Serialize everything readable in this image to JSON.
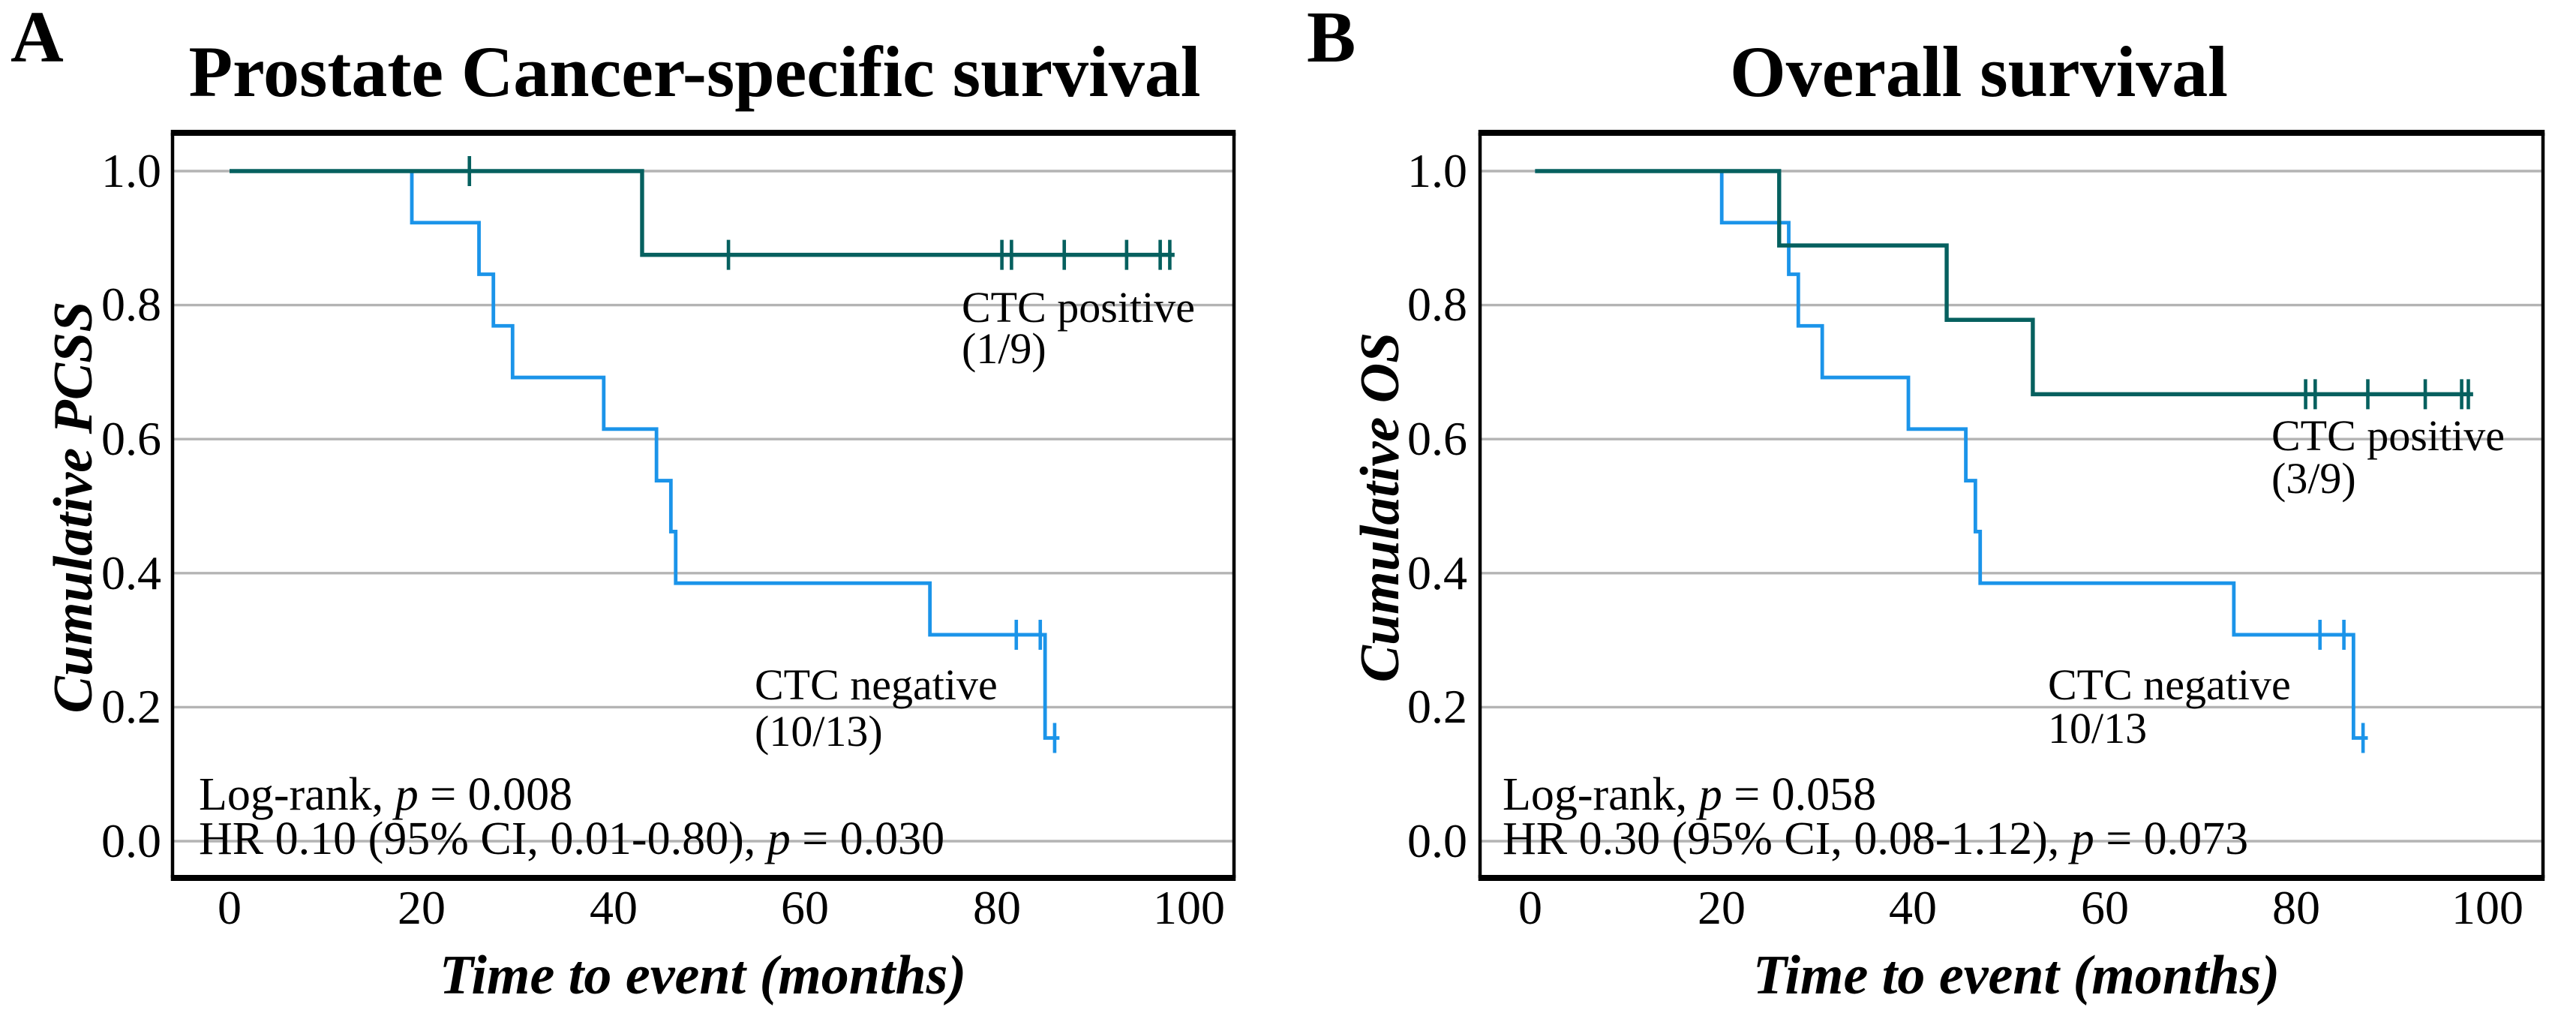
{
  "colors": {
    "ctc_positive": "#06605f",
    "ctc_negative": "#1b94e9",
    "gridline": "#b4b4b4",
    "frame": "#000000",
    "text": "#000000"
  },
  "chart_data": [
    {
      "type": "line",
      "subtype": "kaplan_meier_step",
      "panel_label": "A",
      "title": "Prostate Cancer-specific survival",
      "xlabel": "Time to event (months)",
      "ylabel": "Cumulative PCSS",
      "xlim": [
        0,
        100
      ],
      "ylim": [
        0.0,
        1.0
      ],
      "x_tick_labels": [
        "0",
        "20",
        "40",
        "60",
        "80",
        "100"
      ],
      "y_tick_labels": [
        "1.0",
        "0.8",
        "0.6",
        "0.4",
        "0.2",
        "0.0"
      ],
      "grid": "horizontal-gray",
      "legend_position": "inline-labels",
      "stats": {
        "logrank_prefix": "Log-rank, ",
        "p_symbol": "p",
        "logrank_suffix": " = 0.008",
        "hr_prefix": "HR 0.10 (95% CI, 0.01-0.80), ",
        "hr_suffix": " = 0.030"
      },
      "series": [
        {
          "name": "CTC negative",
          "label_line1": "CTC negative",
          "label_line2": "(10/13)",
          "events": "10/13",
          "color_key": "ctc_negative",
          "steps": [
            [
              0,
              1.0
            ],
            [
              19,
              0.923
            ],
            [
              26,
              0.846
            ],
            [
              27.5,
              0.769
            ],
            [
              29.5,
              0.692
            ],
            [
              39,
              0.615
            ],
            [
              44.5,
              0.538
            ],
            [
              46,
              0.462
            ],
            [
              46.5,
              0.385
            ],
            [
              73,
              0.308
            ],
            [
              85,
              0.154
            ]
          ],
          "end": 86.5,
          "censor_marks": [
            [
              82,
              0.308
            ],
            [
              84.5,
              0.308
            ],
            [
              86,
              0.154
            ]
          ]
        },
        {
          "name": "CTC positive",
          "label_line1": "CTC positive",
          "label_line2": "(1/9)",
          "events": "1/9",
          "color_key": "ctc_positive",
          "steps": [
            [
              0,
              1.0
            ],
            [
              43,
              0.875
            ]
          ],
          "end": 98.5,
          "censor_marks": [
            [
              25,
              1.0
            ],
            [
              52,
              0.875
            ],
            [
              80.5,
              0.875
            ],
            [
              81.5,
              0.875
            ],
            [
              87,
              0.875
            ],
            [
              93.5,
              0.875
            ],
            [
              97,
              0.875
            ],
            [
              98,
              0.875
            ]
          ]
        }
      ]
    },
    {
      "type": "line",
      "subtype": "kaplan_meier_step",
      "panel_label": "B",
      "title": "Overall survival",
      "xlabel": "Time to event (months)",
      "ylabel": "Cumulative OS",
      "xlim": [
        0,
        100
      ],
      "ylim": [
        0.0,
        1.0
      ],
      "x_tick_labels": [
        "0",
        "20",
        "40",
        "60",
        "80",
        "100"
      ],
      "y_tick_labels": [
        "1.0",
        "0.8",
        "0.6",
        "0.4",
        "0.2",
        "0.0"
      ],
      "grid": "horizontal-gray",
      "legend_position": "inline-labels",
      "stats": {
        "logrank_prefix": "Log-rank, ",
        "p_symbol": "p",
        "logrank_suffix": " = 0.058",
        "hr_prefix": "HR 0.30 (95% CI, 0.08-1.12), ",
        "hr_suffix": " = 0.073"
      },
      "series": [
        {
          "name": "CTC negative",
          "label_line1": "CTC negative",
          "label_line2": "10/13",
          "events": "10/13",
          "color_key": "ctc_negative",
          "steps": [
            [
              0.5,
              1.0
            ],
            [
              20,
              0.923
            ],
            [
              27,
              0.846
            ],
            [
              28,
              0.769
            ],
            [
              30.5,
              0.692
            ],
            [
              39.5,
              0.615
            ],
            [
              45.5,
              0.538
            ],
            [
              46.5,
              0.462
            ],
            [
              47,
              0.385
            ],
            [
              73.5,
              0.308
            ],
            [
              86,
              0.154
            ]
          ],
          "end": 87.5,
          "censor_marks": [
            [
              82.5,
              0.308
            ],
            [
              85,
              0.308
            ],
            [
              87,
              0.154
            ]
          ]
        },
        {
          "name": "CTC positive",
          "label_line1": "CTC positive",
          "label_line2": "(3/9)",
          "events": "3/9",
          "color_key": "ctc_positive",
          "steps": [
            [
              0.5,
              1.0
            ],
            [
              26,
              0.889
            ],
            [
              43.5,
              0.778
            ],
            [
              52.5,
              0.667
            ]
          ],
          "end": 98.5,
          "censor_marks": [
            [
              81,
              0.667
            ],
            [
              82,
              0.667
            ],
            [
              87.5,
              0.667
            ],
            [
              93.5,
              0.667
            ],
            [
              97.3,
              0.667
            ],
            [
              98,
              0.667
            ]
          ]
        }
      ]
    }
  ]
}
